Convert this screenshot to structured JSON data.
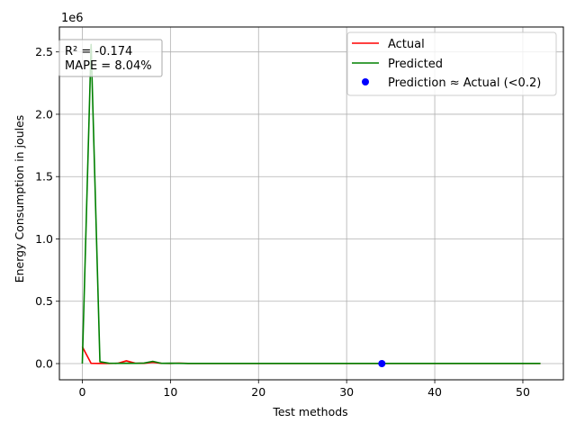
{
  "chart_data": {
    "type": "line",
    "xlabel": "Test methods",
    "ylabel": "Energy Consumption in joules",
    "y_offset_label": "1e6",
    "xlim": [
      -2.6,
      54.6
    ],
    "ylim": [
      -130000,
      2700000
    ],
    "x_ticks": [
      0,
      10,
      20,
      30,
      40,
      50
    ],
    "x_tick_labels": [
      "0",
      "10",
      "20",
      "30",
      "40",
      "50"
    ],
    "y_ticks": [
      0,
      500000,
      1000000,
      1500000,
      2000000,
      2500000
    ],
    "y_tick_labels": [
      "0.0",
      "0.5",
      "1.0",
      "1.5",
      "2.0",
      "2.5"
    ],
    "grid": true,
    "legend_position": "top-right",
    "series": [
      {
        "name": "Actual",
        "color": "#ff0000",
        "x": [
          0,
          1,
          2,
          3,
          4,
          5,
          6,
          7,
          8,
          9,
          10,
          11,
          12,
          13,
          14,
          15,
          16,
          17,
          18,
          19,
          20,
          21,
          22,
          23,
          24,
          25,
          26,
          27,
          28,
          29,
          30,
          31,
          32,
          33,
          34,
          35,
          36,
          37,
          38,
          39,
          40,
          41,
          42,
          43,
          44,
          45,
          46,
          47,
          48,
          49,
          50,
          51,
          52
        ],
        "y": [
          135000,
          2000,
          1000,
          1000,
          2000,
          22000,
          3000,
          2000,
          10000,
          2000,
          1000,
          3000,
          1000,
          1000,
          1000,
          1000,
          1000,
          1000,
          1000,
          1000,
          1000,
          1000,
          1000,
          1000,
          1000,
          1000,
          1000,
          1000,
          1000,
          1000,
          1000,
          1000,
          1000,
          1000,
          1000,
          1000,
          1000,
          1000,
          1000,
          1000,
          1000,
          1000,
          1000,
          1000,
          1000,
          1000,
          1000,
          1000,
          1000,
          1000,
          1000,
          1000,
          1000
        ]
      },
      {
        "name": "Predicted",
        "color": "#008000",
        "x": [
          0,
          1,
          2,
          3,
          4,
          5,
          6,
          7,
          8,
          9,
          10,
          11,
          12,
          13,
          14,
          15,
          16,
          17,
          18,
          19,
          20,
          21,
          22,
          23,
          24,
          25,
          26,
          27,
          28,
          29,
          30,
          31,
          32,
          33,
          34,
          35,
          36,
          37,
          38,
          39,
          40,
          41,
          42,
          43,
          44,
          45,
          46,
          47,
          48,
          49,
          50,
          51,
          52
        ],
        "y": [
          0,
          2560000,
          15000,
          3000,
          2000,
          3000,
          2000,
          4000,
          18000,
          2000,
          3000,
          2000,
          1000,
          1000,
          1000,
          1000,
          1000,
          1000,
          1000,
          1000,
          1000,
          1000,
          1000,
          1000,
          1000,
          1000,
          1000,
          1000,
          1000,
          1000,
          1000,
          1000,
          1000,
          1000,
          1000,
          1000,
          1000,
          1000,
          1000,
          1000,
          1000,
          1000,
          1000,
          1000,
          1000,
          1000,
          1000,
          1000,
          1000,
          1000,
          1000,
          1000,
          1000
        ]
      },
      {
        "name": "Prediction ≈ Actual (<0.2)",
        "color": "#0000ff",
        "marker": "circle",
        "x": [
          34
        ],
        "y": [
          0
        ]
      }
    ],
    "annotations": [
      "R² = -0.174",
      "MAPE = 8.04%"
    ]
  }
}
